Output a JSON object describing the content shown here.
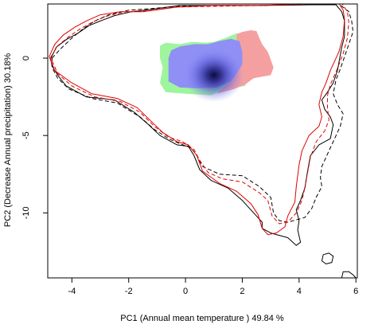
{
  "chart_data": {
    "type": "contour",
    "xlabel": "PC1 (Annual mean temperature ) 49.84 %",
    "ylabel": "PC2 (Decrease Annual precipitation) 30.18%",
    "xlim": [
      -4.85,
      6.05
    ],
    "ylim": [
      -14.2,
      3.5
    ],
    "xticks": [
      -4,
      -2,
      0,
      2,
      4,
      6
    ],
    "yticks": [
      0,
      -5,
      -10
    ],
    "xtick_labels": [
      "-4",
      "-2",
      "0",
      "2",
      "4",
      "6"
    ],
    "ytick_labels": [
      "0",
      "-5",
      "-10"
    ],
    "grid": false,
    "legend": "none",
    "colors": {
      "native_contour": "#000000",
      "invaded_contour": "#e00000",
      "overlap": "#8f8ff5",
      "native_only": "#9ef59e",
      "invaded_only": "#f5a0a0",
      "density_center": "#0b0b3c"
    },
    "series": [
      {
        "style": "solid",
        "color": "#000000",
        "points": [
          [
            -4.75,
            -0.05
          ],
          [
            -4.55,
            0.7
          ],
          [
            -4.2,
            1.2
          ],
          [
            -3.8,
            1.6
          ],
          [
            -3.4,
            2.1
          ],
          [
            -3.0,
            2.4
          ],
          [
            -2.5,
            2.75
          ],
          [
            -1.9,
            3.0
          ],
          [
            -1.2,
            3.15
          ],
          [
            -0.2,
            3.4
          ],
          [
            1.0,
            3.4
          ],
          [
            2.6,
            3.4
          ],
          [
            4.4,
            3.45
          ],
          [
            5.3,
            3.45
          ],
          [
            5.5,
            3.0
          ],
          [
            5.6,
            2.4
          ],
          [
            5.6,
            1.4
          ],
          [
            5.5,
            0.7
          ],
          [
            5.35,
            -0.8
          ],
          [
            5.2,
            -1.6
          ],
          [
            5.0,
            -2.2
          ],
          [
            4.8,
            -2.7
          ],
          [
            4.9,
            -3.3
          ],
          [
            5.1,
            -3.8
          ],
          [
            5.2,
            -4.3
          ],
          [
            5.1,
            -5.2
          ],
          [
            4.7,
            -5.6
          ],
          [
            4.4,
            -6.3
          ],
          [
            4.3,
            -7.3
          ],
          [
            4.2,
            -8.4
          ],
          [
            4.05,
            -9.2
          ],
          [
            3.9,
            -9.8
          ],
          [
            4.0,
            -10.5
          ],
          [
            3.95,
            -11.1
          ],
          [
            4.05,
            -11.9
          ],
          [
            3.9,
            -12.1
          ],
          [
            3.6,
            -11.6
          ],
          [
            3.2,
            -11.4
          ],
          [
            3.0,
            -11.3
          ],
          [
            2.7,
            -11.0
          ],
          [
            2.7,
            -10.6
          ],
          [
            2.5,
            -10.2
          ],
          [
            2.0,
            -9.2
          ],
          [
            1.5,
            -8.4
          ],
          [
            0.9,
            -7.9
          ],
          [
            0.5,
            -7.2
          ],
          [
            0.3,
            -6.3
          ],
          [
            0.1,
            -5.7
          ],
          [
            -0.3,
            -5.6
          ],
          [
            -0.9,
            -5.0
          ],
          [
            -1.3,
            -4.3
          ],
          [
            -1.8,
            -3.5
          ],
          [
            -2.5,
            -2.7
          ],
          [
            -3.5,
            -2.5
          ],
          [
            -4.2,
            -1.8
          ],
          [
            -4.5,
            -1.1
          ],
          [
            -4.7,
            -0.5
          ],
          [
            -4.75,
            -0.05
          ]
        ]
      },
      {
        "style": "dashed",
        "color": "#000000",
        "points": [
          [
            -4.7,
            0.0
          ],
          [
            -4.4,
            0.6
          ],
          [
            -4.0,
            1.3
          ],
          [
            -3.6,
            1.9
          ],
          [
            -3.2,
            2.4
          ],
          [
            -2.7,
            2.8
          ],
          [
            -2.0,
            3.1
          ],
          [
            -1.2,
            3.2
          ],
          [
            -0.3,
            3.35
          ],
          [
            0.9,
            3.4
          ],
          [
            2.6,
            3.4
          ],
          [
            4.5,
            3.5
          ],
          [
            5.4,
            3.5
          ],
          [
            5.75,
            3.0
          ],
          [
            5.85,
            2.4
          ],
          [
            5.9,
            1.7
          ],
          [
            5.75,
            0.9
          ],
          [
            5.45,
            -0.7
          ],
          [
            5.3,
            -1.4
          ],
          [
            5.2,
            -2.3
          ],
          [
            5.35,
            -3.0
          ],
          [
            5.55,
            -3.6
          ],
          [
            5.45,
            -4.4
          ],
          [
            5.2,
            -5.4
          ],
          [
            5.0,
            -6.2
          ],
          [
            4.8,
            -7.0
          ],
          [
            4.75,
            -7.7
          ],
          [
            4.8,
            -8.3
          ],
          [
            4.6,
            -9.0
          ],
          [
            4.45,
            -9.7
          ],
          [
            4.2,
            -10.3
          ],
          [
            3.6,
            -10.6
          ],
          [
            3.3,
            -10.5
          ],
          [
            3.1,
            -10.0
          ],
          [
            3.0,
            -9.0
          ],
          [
            2.6,
            -8.3
          ],
          [
            2.0,
            -7.6
          ],
          [
            1.2,
            -7.5
          ],
          [
            0.6,
            -7.0
          ],
          [
            0.4,
            -6.3
          ],
          [
            0.2,
            -5.8
          ],
          [
            -0.1,
            -5.6
          ],
          [
            -0.6,
            -5.2
          ],
          [
            -1.1,
            -4.6
          ],
          [
            -1.6,
            -3.8
          ],
          [
            -2.4,
            -2.9
          ],
          [
            -3.3,
            -2.6
          ],
          [
            -4.1,
            -2.0
          ],
          [
            -4.5,
            -1.3
          ],
          [
            -4.7,
            -0.6
          ],
          [
            -4.7,
            0.0
          ]
        ]
      },
      {
        "style": "solid",
        "color": "#e00000",
        "points": [
          [
            -4.8,
            0.1
          ],
          [
            -4.6,
            0.9
          ],
          [
            -4.3,
            1.5
          ],
          [
            -3.9,
            2.0
          ],
          [
            -3.5,
            2.4
          ],
          [
            -3.0,
            2.8
          ],
          [
            -2.3,
            3.0
          ],
          [
            -1.5,
            3.0
          ],
          [
            -0.3,
            3.3
          ],
          [
            1.0,
            3.4
          ],
          [
            2.6,
            3.4
          ],
          [
            4.2,
            3.5
          ],
          [
            5.4,
            3.55
          ],
          [
            5.55,
            3.1
          ],
          [
            5.6,
            2.5
          ],
          [
            5.55,
            1.4
          ],
          [
            5.4,
            0.4
          ],
          [
            5.1,
            -0.8
          ],
          [
            4.95,
            -1.6
          ],
          [
            4.8,
            -2.2
          ],
          [
            4.7,
            -3.0
          ],
          [
            4.8,
            -3.8
          ],
          [
            4.7,
            -4.4
          ],
          [
            4.35,
            -5.0
          ],
          [
            4.1,
            -6.0
          ],
          [
            4.0,
            -6.9
          ],
          [
            3.9,
            -8.3
          ],
          [
            3.85,
            -9.3
          ],
          [
            3.6,
            -10.2
          ],
          [
            3.5,
            -10.9
          ],
          [
            3.2,
            -11.3
          ],
          [
            2.9,
            -11.4
          ],
          [
            2.7,
            -11.0
          ],
          [
            2.55,
            -10.1
          ],
          [
            2.3,
            -9.4
          ],
          [
            1.8,
            -8.6
          ],
          [
            1.2,
            -8.1
          ],
          [
            0.6,
            -7.3
          ],
          [
            0.4,
            -6.3
          ],
          [
            0.1,
            -5.6
          ],
          [
            -0.3,
            -5.4
          ],
          [
            -0.8,
            -4.8
          ],
          [
            -1.2,
            -4.1
          ],
          [
            -1.7,
            -3.2
          ],
          [
            -2.4,
            -2.6
          ],
          [
            -3.3,
            -2.3
          ],
          [
            -4.0,
            -1.6
          ],
          [
            -4.6,
            -0.8
          ],
          [
            -4.8,
            0.1
          ]
        ]
      },
      {
        "style": "dashed",
        "color": "#e00000",
        "points": [
          [
            -4.75,
            0.05
          ],
          [
            -4.5,
            0.8
          ],
          [
            -4.1,
            1.4
          ],
          [
            -3.7,
            1.9
          ],
          [
            -3.3,
            2.3
          ],
          [
            -2.8,
            2.7
          ],
          [
            -2.1,
            3.0
          ],
          [
            -1.3,
            3.05
          ],
          [
            -0.4,
            3.3
          ],
          [
            1.0,
            3.35
          ],
          [
            2.6,
            3.4
          ],
          [
            4.3,
            3.5
          ],
          [
            5.5,
            3.55
          ],
          [
            5.7,
            3.0
          ],
          [
            5.75,
            2.3
          ],
          [
            5.7,
            1.3
          ],
          [
            5.55,
            0.3
          ],
          [
            5.3,
            -0.9
          ],
          [
            5.1,
            -1.7
          ],
          [
            5.0,
            -2.4
          ],
          [
            5.0,
            -3.2
          ],
          [
            5.05,
            -4.0
          ],
          [
            4.9,
            -4.7
          ],
          [
            4.6,
            -5.4
          ],
          [
            4.4,
            -6.4
          ],
          [
            4.3,
            -7.4
          ],
          [
            4.2,
            -8.4
          ],
          [
            4.1,
            -9.2
          ],
          [
            3.9,
            -10.0
          ],
          [
            3.6,
            -10.6
          ],
          [
            3.3,
            -10.7
          ],
          [
            3.05,
            -10.2
          ],
          [
            2.9,
            -9.2
          ],
          [
            2.6,
            -8.7
          ],
          [
            2.0,
            -8.0
          ],
          [
            1.3,
            -7.8
          ],
          [
            0.8,
            -7.4
          ],
          [
            0.5,
            -6.6
          ],
          [
            0.3,
            -5.9
          ],
          [
            -0.1,
            -5.4
          ],
          [
            -0.6,
            -5.1
          ],
          [
            -1.1,
            -4.4
          ],
          [
            -1.6,
            -3.5
          ],
          [
            -2.3,
            -2.8
          ],
          [
            -3.2,
            -2.5
          ],
          [
            -4.0,
            -1.8
          ],
          [
            -4.5,
            -1.0
          ],
          [
            -4.75,
            0.05
          ]
        ]
      },
      {
        "style": "solid",
        "color": "#000000",
        "points": [
          [
            4.85,
            -12.7
          ],
          [
            5.05,
            -12.6
          ],
          [
            5.2,
            -12.8
          ],
          [
            5.15,
            -13.2
          ],
          [
            4.95,
            -13.3
          ],
          [
            4.8,
            -13.1
          ],
          [
            4.85,
            -12.7
          ]
        ]
      },
      {
        "style": "solid",
        "color": "#000000",
        "points": [
          [
            5.5,
            -14.2
          ],
          [
            5.55,
            -13.8
          ],
          [
            5.75,
            -13.8
          ],
          [
            5.9,
            -14.0
          ],
          [
            6.0,
            -14.2
          ]
        ]
      }
    ],
    "regions": [
      {
        "category": "native_only",
        "color": "#9ef59e",
        "points": [
          [
            -0.9,
            0.8
          ],
          [
            -0.7,
            1.0
          ],
          [
            -0.2,
            0.9
          ],
          [
            0.2,
            1.05
          ],
          [
            0.7,
            1.0
          ],
          [
            1.0,
            1.05
          ],
          [
            1.4,
            1.3
          ],
          [
            1.8,
            1.6
          ],
          [
            2.0,
            1.5
          ],
          [
            1.9,
            0.6
          ],
          [
            2.0,
            -0.5
          ],
          [
            2.2,
            -1.3
          ],
          [
            2.1,
            -1.8
          ],
          [
            1.4,
            -2.0
          ],
          [
            0.9,
            -2.4
          ],
          [
            0.0,
            -2.3
          ],
          [
            -0.7,
            -2.2
          ],
          [
            -0.9,
            -1.6
          ],
          [
            -0.8,
            -0.6
          ],
          [
            -0.9,
            0.0
          ],
          [
            -0.9,
            0.8
          ]
        ]
      },
      {
        "category": "invaded_only",
        "color": "#f5a0a0",
        "points": [
          [
            1.8,
            1.55
          ],
          [
            2.0,
            1.7
          ],
          [
            2.3,
            1.8
          ],
          [
            2.5,
            1.75
          ],
          [
            2.6,
            1.3
          ],
          [
            2.7,
            0.9
          ],
          [
            2.9,
            0.4
          ],
          [
            3.0,
            -0.1
          ],
          [
            3.1,
            -0.6
          ],
          [
            3.0,
            -1.1
          ],
          [
            2.7,
            -1.2
          ],
          [
            2.4,
            -1.3
          ],
          [
            2.1,
            -1.7
          ],
          [
            1.7,
            -2.0
          ],
          [
            1.1,
            -2.3
          ],
          [
            1.6,
            -1.5
          ],
          [
            1.9,
            -0.3
          ],
          [
            1.8,
            0.6
          ],
          [
            1.8,
            1.55
          ]
        ]
      },
      {
        "category": "overlap",
        "color": "#8f8ff5",
        "points": [
          [
            -0.2,
            0.75
          ],
          [
            0.3,
            0.9
          ],
          [
            0.8,
            0.9
          ],
          [
            1.2,
            1.1
          ],
          [
            1.6,
            1.25
          ],
          [
            1.9,
            1.1
          ],
          [
            2.0,
            0.4
          ],
          [
            2.0,
            -0.4
          ],
          [
            1.8,
            -1.0
          ],
          [
            1.6,
            -1.5
          ],
          [
            1.1,
            -1.9
          ],
          [
            0.4,
            -1.95
          ],
          [
            -0.2,
            -1.9
          ],
          [
            -0.6,
            -1.5
          ],
          [
            -0.6,
            -0.7
          ],
          [
            -0.6,
            0.0
          ],
          [
            -0.5,
            0.5
          ],
          [
            -0.2,
            0.75
          ]
        ]
      }
    ],
    "density_peak": [
      1.0,
      -1.1
    ]
  }
}
